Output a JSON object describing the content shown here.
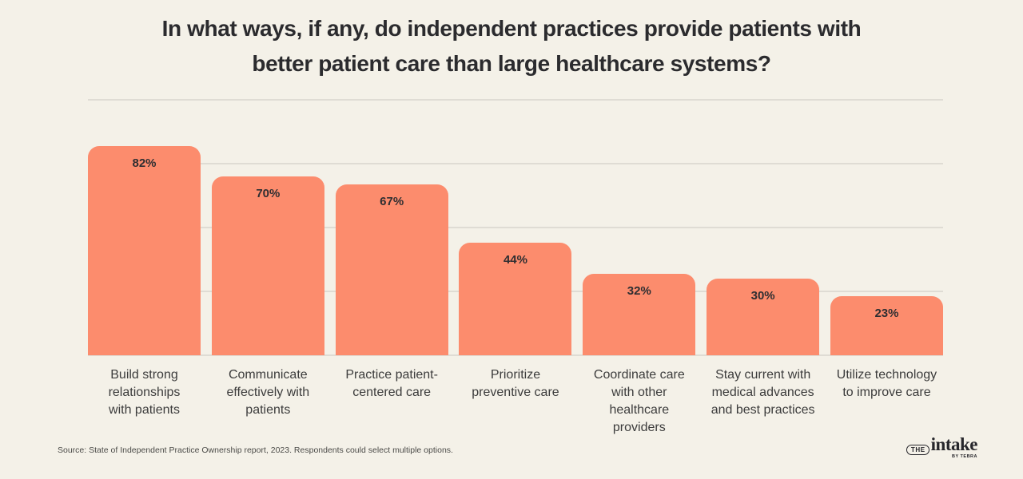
{
  "title": {
    "lines": [
      "In what ways, if any, do independent practices provide patients with",
      "better patient care than large healthcare systems?"
    ]
  },
  "chart_data": {
    "type": "bar",
    "title": "In what ways, if any, do independent practices provide patients with better patient care than large healthcare systems?",
    "categories": [
      "Build strong relationships with patients",
      "Communicate effectively with patients",
      "Practice patient-centered care",
      "Prioritize preventive care",
      "Coordinate care with other healthcare providers",
      "Stay current with medical advances and best practices",
      "Utilize technology to improve care"
    ],
    "values": [
      82,
      70,
      67,
      44,
      32,
      30,
      23
    ],
    "value_labels": [
      "82%",
      "70%",
      "67%",
      "44%",
      "32%",
      "30%",
      "23%"
    ],
    "category_label_lines": [
      [
        "Build strong",
        "relationships",
        "with patients"
      ],
      [
        "Communicate",
        "effectively with",
        "patients"
      ],
      [
        "Practice patient-",
        "centered care"
      ],
      [
        "Prioritize",
        "preventive care"
      ],
      [
        "Coordinate care",
        "with other",
        "healthcare",
        "providers"
      ],
      [
        "Stay current with",
        "medical advances",
        "and best practices"
      ],
      [
        "Utilize technology",
        "to improve care"
      ]
    ],
    "xlabel": "",
    "ylabel": "",
    "ylim": [
      0,
      100
    ],
    "gridline_step": 25,
    "grid": true,
    "legend": false,
    "bar_color": "#FC8C6D"
  },
  "footer": {
    "source": "Source: State of Independent Practice Ownership report, 2023. Respondents could select multiple options."
  },
  "logo": {
    "the": "THE",
    "name": "intake",
    "byline": "BY TEBRA"
  },
  "colors": {
    "background": "#F4F1E8",
    "bar": "#FC8C6D",
    "gridline": "#DFDCD4",
    "title_text": "#2B2B2E",
    "category_text": "#3C3C3C",
    "value_text": "#2E2E31"
  }
}
